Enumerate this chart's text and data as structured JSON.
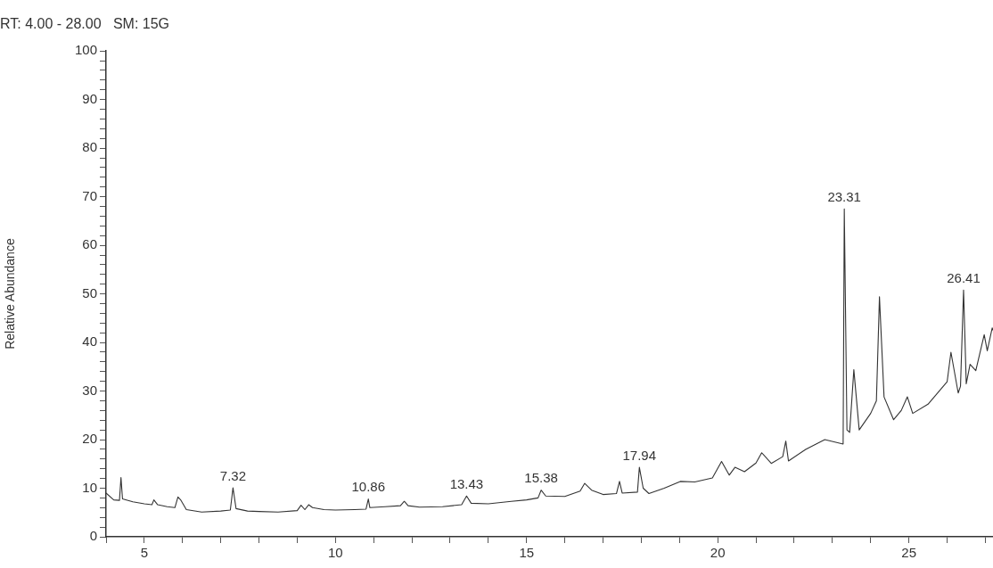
{
  "chart_data": {
    "type": "line",
    "title": "RT: 4.00 - 28.00   SM: 15G",
    "ylabel": "Relative Abundance",
    "x": [
      4.0,
      4.2,
      4.35,
      4.39,
      4.43,
      4.7,
      5.0,
      5.2,
      5.25,
      5.35,
      5.6,
      5.8,
      5.88,
      5.95,
      6.1,
      6.5,
      7.0,
      7.25,
      7.32,
      7.4,
      7.7,
      8.0,
      8.5,
      9.0,
      9.1,
      9.2,
      9.3,
      9.4,
      9.7,
      10.0,
      10.5,
      10.8,
      10.86,
      10.9,
      11.3,
      11.7,
      11.8,
      11.9,
      12.2,
      12.8,
      13.3,
      13.43,
      13.55,
      14.0,
      14.6,
      15.0,
      15.3,
      15.38,
      15.5,
      16.0,
      16.4,
      16.52,
      16.7,
      17.0,
      17.35,
      17.43,
      17.5,
      17.9,
      17.95,
      18.05,
      18.2,
      18.6,
      19.02,
      19.4,
      19.86,
      20.1,
      20.3,
      20.45,
      20.7,
      21.0,
      21.15,
      21.4,
      21.7,
      21.78,
      21.85,
      22.3,
      22.8,
      23.28,
      23.31,
      23.38,
      23.45,
      23.56,
      23.7,
      24.0,
      24.15,
      24.23,
      24.35,
      24.6,
      24.8,
      24.96,
      25.1,
      25.5,
      26.0,
      26.1,
      26.29,
      26.35,
      26.43,
      26.5,
      26.6,
      26.75,
      26.97,
      27.05,
      27.18,
      27.2
    ],
    "series": [
      {
        "color": "#333333",
        "values": [
          9,
          7.6,
          7.5,
          12.2,
          7.8,
          7.2,
          6.8,
          6.6,
          7.6,
          6.6,
          6.2,
          6.0,
          8.2,
          7.6,
          5.6,
          5.1,
          5.3,
          5.5,
          10.1,
          5.8,
          5.3,
          5.2,
          5.1,
          5.4,
          6.5,
          5.6,
          6.6,
          6.0,
          5.6,
          5.5,
          5.6,
          5.7,
          7.8,
          6.0,
          6.2,
          6.4,
          7.3,
          6.4,
          6.1,
          6.2,
          6.6,
          8.4,
          6.9,
          6.8,
          7.3,
          7.6,
          8.0,
          9.6,
          8.4,
          8.3,
          9.4,
          11.0,
          9.6,
          8.7,
          8.9,
          11.4,
          9.0,
          9.2,
          14.3,
          10.0,
          8.9,
          10.0,
          11.4,
          11.3,
          12.1,
          15.5,
          12.7,
          14.3,
          13.4,
          15.2,
          17.3,
          15.1,
          16.5,
          19.7,
          15.6,
          18.0,
          20.0,
          19.1,
          67.5,
          22.0,
          21.5,
          34.4,
          22.0,
          25.4,
          28.0,
          49.4,
          28.8,
          24.1,
          26.0,
          28.8,
          25.4,
          27.3,
          31.9,
          38.0,
          29.6,
          31.0,
          50.8,
          31.5,
          35.5,
          34.2,
          41.6,
          38.3,
          43.0,
          42.5
        ]
      }
    ],
    "xlim": [
      4,
      27.2
    ],
    "xticks": [
      {
        "value": 4,
        "label": null
      },
      5,
      {
        "value": 6,
        "label": null
      },
      {
        "value": 7,
        "label": null
      },
      {
        "value": 8,
        "label": null
      },
      {
        "value": 9,
        "label": null
      },
      10,
      {
        "value": 11,
        "label": null
      },
      {
        "value": 12,
        "label": null
      },
      {
        "value": 13,
        "label": null
      },
      {
        "value": 14,
        "label": null
      },
      15,
      {
        "value": 16,
        "label": null
      },
      {
        "value": 17,
        "label": null
      },
      {
        "value": 18,
        "label": null
      },
      {
        "value": 19,
        "label": null
      },
      20,
      {
        "value": 21,
        "label": null
      },
      {
        "value": 22,
        "label": null
      },
      {
        "value": 23,
        "label": null
      },
      {
        "value": 24,
        "label": null
      },
      25,
      {
        "value": 26,
        "label": null
      },
      {
        "value": 27,
        "label": null
      }
    ],
    "ylim": [
      0,
      100
    ],
    "yticks": [
      0,
      {
        "value": 2,
        "label": null
      },
      {
        "value": 4,
        "label": null
      },
      {
        "value": 6,
        "label": null
      },
      {
        "value": 8,
        "label": null
      },
      10,
      {
        "value": 12,
        "label": null
      },
      {
        "value": 14,
        "label": null
      },
      {
        "value": 16,
        "label": null
      },
      {
        "value": 18,
        "label": null
      },
      20,
      {
        "value": 22,
        "label": null
      },
      {
        "value": 24,
        "label": null
      },
      {
        "value": 26,
        "label": null
      },
      {
        "value": 28,
        "label": null
      },
      30,
      {
        "value": 32,
        "label": null
      },
      {
        "value": 34,
        "label": null
      },
      {
        "value": 36,
        "label": null
      },
      {
        "value": 38,
        "label": null
      },
      40,
      {
        "value": 42,
        "label": null
      },
      {
        "value": 44,
        "label": null
      },
      {
        "value": 46,
        "label": null
      },
      {
        "value": 48,
        "label": null
      },
      50,
      {
        "value": 52,
        "label": null
      },
      {
        "value": 54,
        "label": null
      },
      {
        "value": 56,
        "label": null
      },
      {
        "value": 58,
        "label": null
      },
      60,
      {
        "value": 62,
        "label": null
      },
      {
        "value": 64,
        "label": null
      },
      {
        "value": 66,
        "label": null
      },
      {
        "value": 68,
        "label": null
      },
      70,
      {
        "value": 72,
        "label": null
      },
      {
        "value": 74,
        "label": null
      },
      {
        "value": 76,
        "label": null
      },
      {
        "value": 78,
        "label": null
      },
      80,
      {
        "value": 82,
        "label": null
      },
      {
        "value": 84,
        "label": null
      },
      {
        "value": 86,
        "label": null
      },
      {
        "value": 88,
        "label": null
      },
      90,
      {
        "value": 92,
        "label": null
      },
      {
        "value": 94,
        "label": null
      },
      {
        "value": 96,
        "label": null
      },
      {
        "value": 98,
        "label": null
      },
      100
    ],
    "grid": false,
    "legend": false,
    "marker": "none",
    "line_style": "solid",
    "annotations": [
      {
        "text": "7.32",
        "x": 7.32,
        "y": 10.1
      },
      {
        "text": "10.86",
        "x": 10.86,
        "y": 7.8
      },
      {
        "text": "13.43",
        "x": 13.43,
        "y": 8.4
      },
      {
        "text": "15.38",
        "x": 15.38,
        "y": 9.6
      },
      {
        "text": "17.94",
        "x": 17.95,
        "y": 14.3
      },
      {
        "text": "23.31",
        "x": 23.31,
        "y": 67.5
      },
      {
        "text": "26.41",
        "x": 26.43,
        "y": 50.8
      }
    ]
  }
}
